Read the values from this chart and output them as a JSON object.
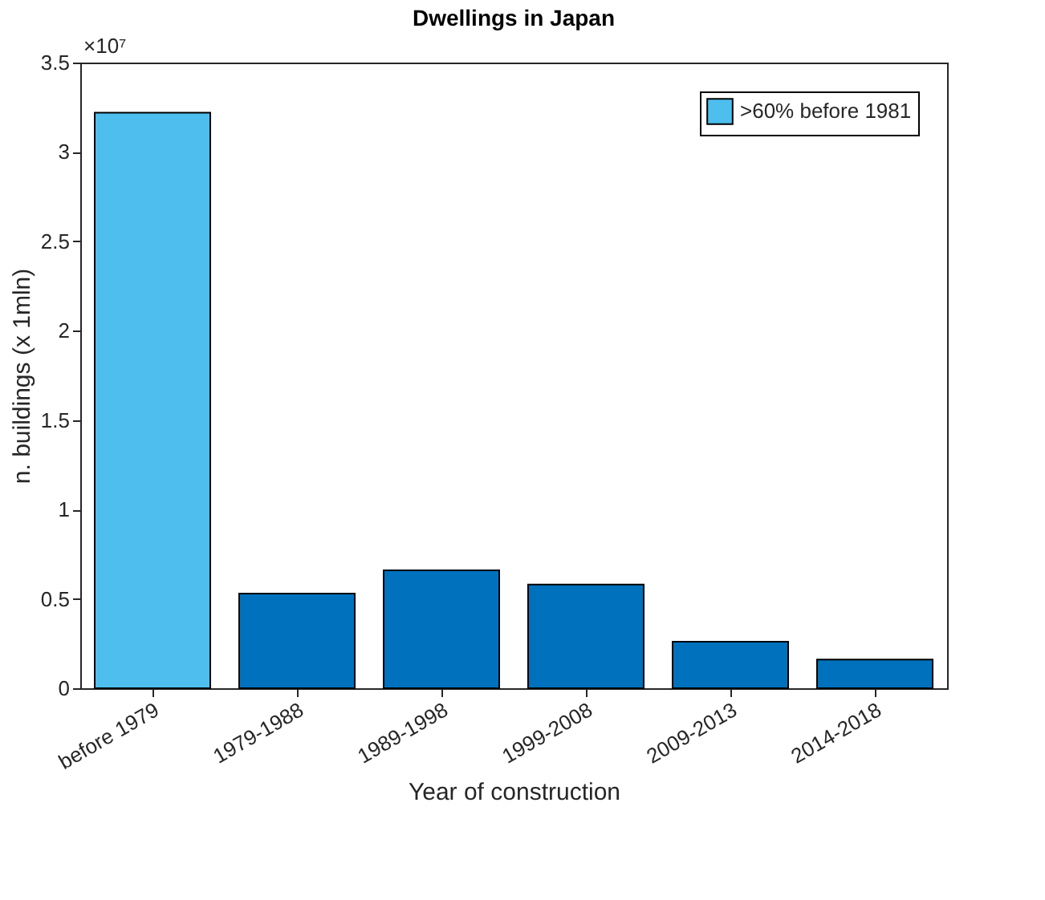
{
  "chart_data": {
    "type": "bar",
    "title": "Dwellings in Japan",
    "xlabel": "Year of construction",
    "ylabel": "n. buildings (x 1mln)",
    "categories": [
      "before 1979",
      "1979-1988",
      "1989-1998",
      "1999-2008",
      "2009-2013",
      "2014-2018"
    ],
    "series": [
      {
        "name": ">60% before 1981",
        "color": "#4dbeee",
        "values": [
          3.22,
          null,
          null,
          null,
          null,
          null
        ]
      },
      {
        "color": "#0072bd",
        "values": [
          null,
          0.53,
          0.66,
          0.58,
          0.26,
          0.16
        ]
      }
    ],
    "ylim": [
      0,
      3.5
    ],
    "yticks": [
      0,
      0.5,
      1,
      1.5,
      2,
      2.5,
      3,
      3.5
    ],
    "annotations": [
      "×10⁷"
    ],
    "grid": false,
    "legend": "top right"
  }
}
